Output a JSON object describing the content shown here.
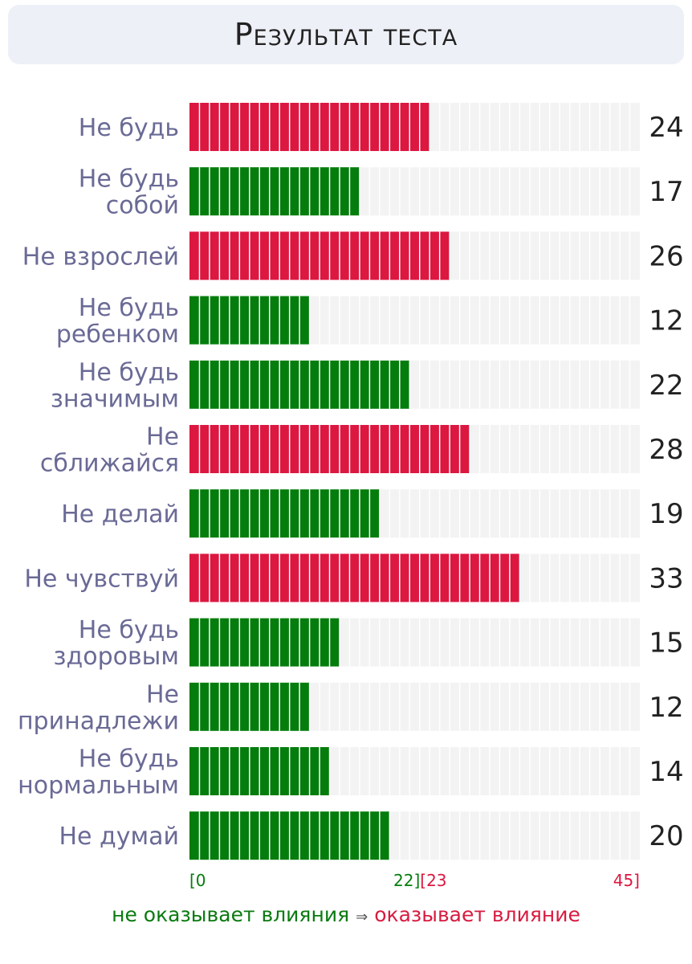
{
  "title": "Результат теста",
  "colors": {
    "no_influence": "#047d0c",
    "influence": "#dc1740",
    "track": "#f3f3f3",
    "category_label": "#6a6a96",
    "value_label": "#222222"
  },
  "legend": {
    "no_influence": "не оказывает влияния",
    "arrow": "⇒",
    "influence": "оказывает влияние"
  },
  "chart_data": {
    "type": "bar",
    "orientation": "horizontal",
    "xlim": [
      0,
      45
    ],
    "threshold": 22,
    "scale_labels": [
      {
        "text": "[0",
        "color": "no_influence"
      },
      {
        "text": "22]",
        "color": "no_influence"
      },
      {
        "text": "[23",
        "color": "influence"
      },
      {
        "text": "45]",
        "color": "influence"
      }
    ],
    "categories": [
      [
        "Не будь"
      ],
      [
        "Не будь",
        "собой"
      ],
      [
        "Не взрослей"
      ],
      [
        "Не будь",
        "ребенком"
      ],
      [
        "Не будь",
        "значимым"
      ],
      [
        "Не",
        "сближайся"
      ],
      [
        "Не делай"
      ],
      [
        "Не чувствуй"
      ],
      [
        "Не будь",
        "здоровым"
      ],
      [
        "Не",
        "принадлежи"
      ],
      [
        "Не будь",
        "нормальным"
      ],
      [
        "Не думай"
      ]
    ],
    "values": [
      24,
      17,
      26,
      12,
      22,
      28,
      19,
      33,
      15,
      12,
      14,
      20
    ]
  }
}
